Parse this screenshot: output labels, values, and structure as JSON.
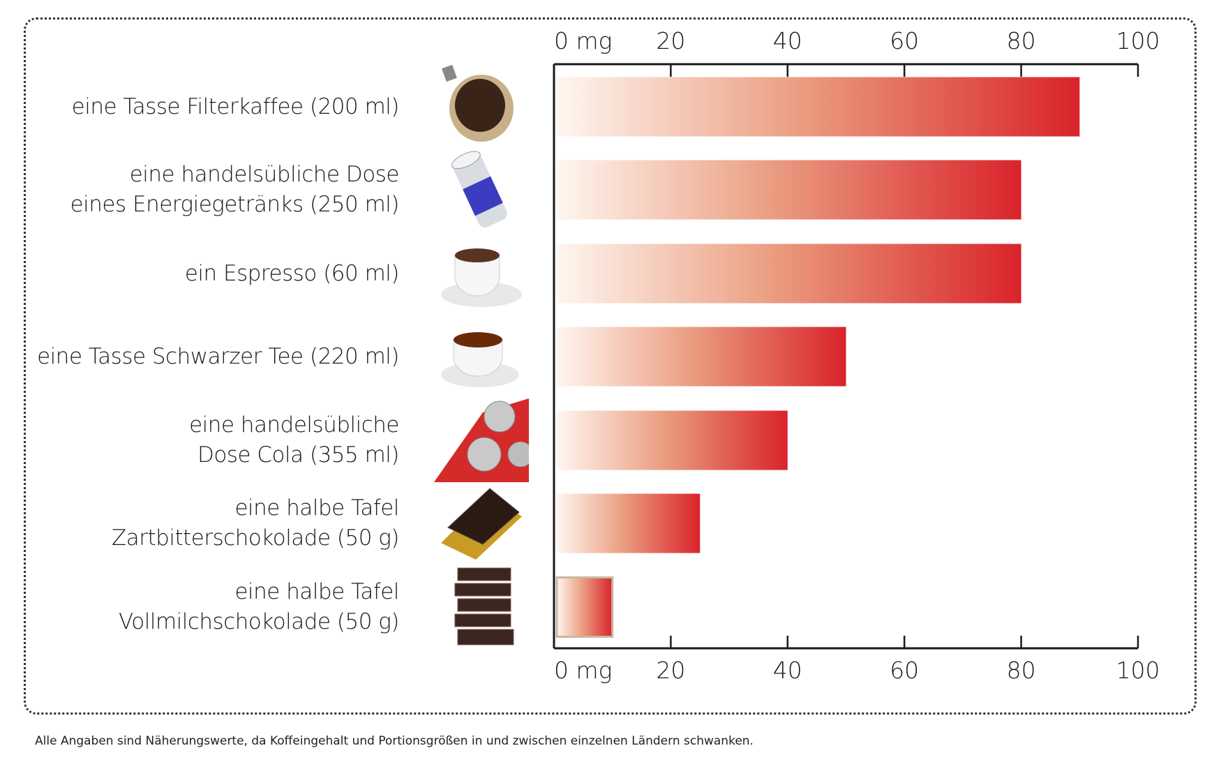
{
  "chart_data": {
    "type": "bar",
    "orientation": "horizontal",
    "categories": [
      [
        "eine Tasse Filterkaffee (200 ml)"
      ],
      [
        "eine handelsübliche Dose",
        "eines Energiegetränks (250 ml)"
      ],
      [
        "ein Espresso (60 ml)"
      ],
      [
        "eine Tasse Schwarzer Tee (220 ml)"
      ],
      [
        "eine handelsübliche",
        "Dose Cola (355 ml)"
      ],
      [
        "eine halbe Tafel",
        "Zartbitterschokolade (50 g)"
      ],
      [
        "eine halbe Tafel",
        "Vollmilchschokolade (50 g)"
      ]
    ],
    "icons": [
      "filter-coffee-icon",
      "energy-drink-can-icon",
      "espresso-cup-icon",
      "black-tea-cup-icon",
      "cola-cans-icon",
      "dark-chocolate-icon",
      "milk-chocolate-icon"
    ],
    "values": [
      90,
      80,
      80,
      50,
      40,
      25,
      10
    ],
    "unit": "mg",
    "xlim": [
      0,
      100
    ],
    "ticks": [
      0,
      20,
      40,
      60,
      80,
      100
    ],
    "tick_labels": [
      "0 mg",
      "20",
      "40",
      "60",
      "80",
      "100"
    ],
    "axis_position": "top-and-bottom",
    "grid": false,
    "colors": {
      "bar_start": "#fff6f0",
      "bar_end": "#d9232b",
      "axis": "#1a1a1a",
      "highlight_border": "#c8b8a4"
    }
  },
  "footnote": "Alle Angaben sind Näherungswerte, da Koffeingehalt und Portionsgrößen in und zwischen einzelnen Ländern schwanken."
}
